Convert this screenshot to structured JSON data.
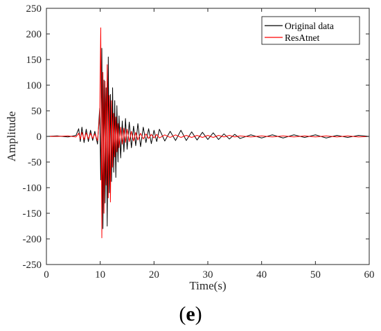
{
  "panel_label": {
    "open": "(",
    "letter": "e",
    "close": ")"
  },
  "chart_data": {
    "type": "line",
    "title": "",
    "xlabel": "Time(s)",
    "ylabel": "Amplitude",
    "xlim": [
      0,
      60
    ],
    "ylim": [
      -250,
      250
    ],
    "xticks": [
      0,
      10,
      20,
      30,
      40,
      50,
      60
    ],
    "yticks": [
      250,
      200,
      150,
      100,
      50,
      0,
      -50,
      -100,
      -150,
      -200,
      -250
    ],
    "grid": false,
    "legend_position": "top-right",
    "series": [
      {
        "name": "Original data",
        "color": "#000000",
        "x": [
          0,
          2,
          4,
          5.5,
          6,
          6.3,
          6.6,
          7,
          7.4,
          7.8,
          8.2,
          8.6,
          9,
          9.5,
          9.9,
          10.1,
          10.3,
          10.5,
          10.7,
          10.9,
          11.1,
          11.3,
          11.5,
          11.7,
          11.9,
          12.1,
          12.3,
          12.5,
          12.7,
          12.9,
          13.1,
          13.3,
          13.5,
          13.8,
          14.1,
          14.4,
          14.7,
          15,
          15.4,
          15.8,
          16.2,
          16.6,
          17,
          17.5,
          18,
          18.5,
          19,
          19.5,
          20,
          20.5,
          21,
          22,
          23,
          24,
          25,
          26,
          27,
          28,
          29,
          30,
          31,
          32,
          33,
          34,
          35,
          36,
          38,
          40,
          42,
          44,
          46,
          48,
          50,
          52,
          54,
          56,
          58,
          60
        ],
        "y": [
          0,
          1,
          -1,
          2,
          15,
          -10,
          18,
          -12,
          14,
          -10,
          12,
          -8,
          10,
          -15,
          55,
          -85,
          172,
          -180,
          110,
          -130,
          95,
          -175,
          155,
          -110,
          82,
          -88,
          95,
          -70,
          70,
          -80,
          60,
          -50,
          40,
          -42,
          30,
          -30,
          35,
          -25,
          28,
          -22,
          20,
          -18,
          25,
          -20,
          18,
          -12,
          15,
          -14,
          12,
          -10,
          14,
          -9,
          10,
          -8,
          12,
          -8,
          9,
          -7,
          8,
          -6,
          7,
          -6,
          5,
          -5,
          4,
          -4,
          3,
          -3,
          3,
          -3,
          3,
          -2,
          3,
          -3,
          2,
          -2,
          2,
          0
        ]
      },
      {
        "name": "ResAtnet",
        "color": "#ff0000",
        "x": [
          0,
          2,
          4,
          5.5,
          6,
          6.3,
          6.6,
          7,
          7.4,
          7.8,
          8.2,
          8.6,
          9,
          9.5,
          9.9,
          10.1,
          10.3,
          10.5,
          10.7,
          10.9,
          11.1,
          11.3,
          11.5,
          11.7,
          11.9,
          12.1,
          12.3,
          12.5,
          12.7,
          12.9,
          13.1,
          13.3,
          13.5,
          13.8,
          14.1,
          14.4,
          14.7,
          15,
          15.4,
          15.8,
          16.2,
          16.6,
          17,
          17.5,
          18,
          18.5,
          19,
          19.5,
          20,
          20.5,
          21,
          22,
          23,
          24,
          25,
          26,
          27,
          28,
          29,
          30,
          31,
          32,
          33,
          34,
          35,
          36,
          38,
          40,
          42,
          44,
          46,
          48,
          50,
          52,
          54,
          56,
          58,
          60
        ],
        "y": [
          0,
          0,
          1,
          -1,
          6,
          -5,
          8,
          -6,
          7,
          -5,
          6,
          -4,
          5,
          -8,
          40,
          212,
          -198,
          125,
          -150,
          108,
          -95,
          140,
          -120,
          80,
          -128,
          70,
          -60,
          45,
          -40,
          38,
          -30,
          25,
          -22,
          18,
          -15,
          16,
          -12,
          14,
          -10,
          10,
          -9,
          8,
          -7,
          6,
          -5,
          5,
          -4,
          4,
          -3,
          4,
          -3,
          3,
          -2,
          3,
          -2,
          2,
          -2,
          2,
          -2,
          2,
          -2,
          2,
          -1,
          2,
          -1,
          1,
          -1,
          1,
          -1,
          1,
          -1,
          1,
          -1,
          1,
          -1,
          1,
          -1,
          0
        ]
      }
    ]
  }
}
